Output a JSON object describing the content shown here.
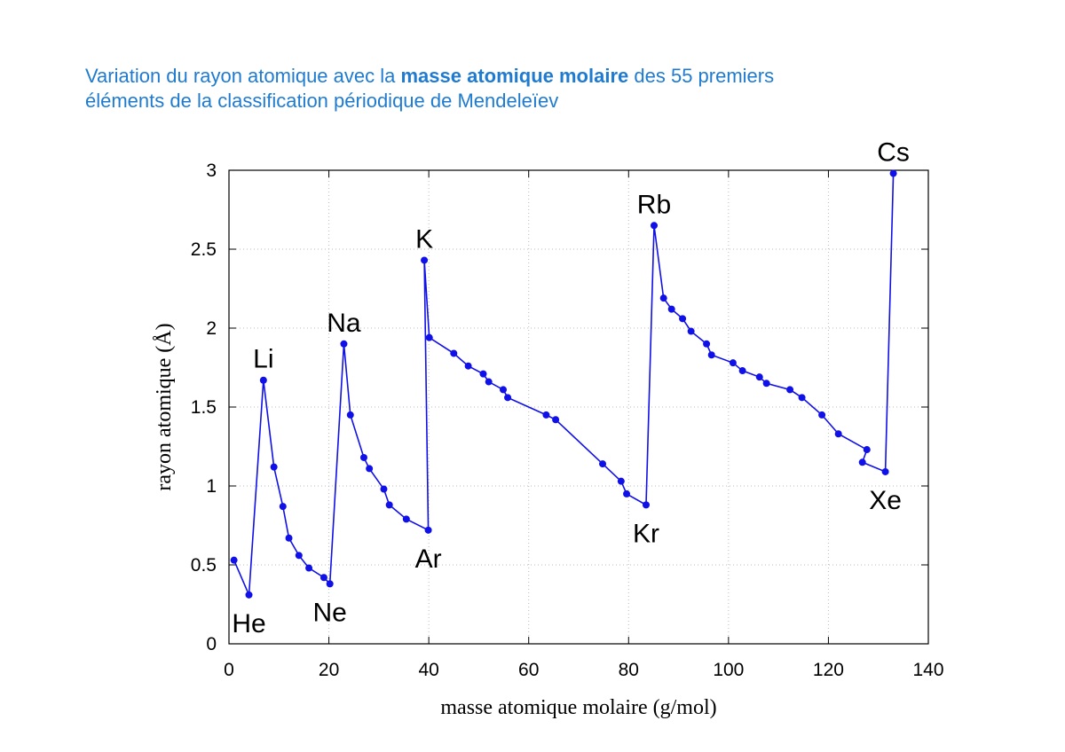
{
  "chart_data": {
    "type": "line",
    "title": [
      "Variation du rayon atomique avec la ",
      "masse atomique molaire",
      " des 55 premiers",
      "éléments de la classification périodique de Mendeleïev"
    ],
    "xlabel": "masse atomique molaire (g/mol)",
    "ylabel": "rayon atomique (Å)",
    "x": [
      1,
      4,
      6.9,
      9,
      10.8,
      12,
      14,
      16,
      19,
      20.2,
      23,
      24.3,
      27,
      28.1,
      31,
      32.1,
      35.5,
      39.9,
      39.1,
      40.1,
      45,
      47.9,
      50.9,
      52,
      54.9,
      55.8,
      63.5,
      65.4,
      74.8,
      78.5,
      79.6,
      83.5,
      85.1,
      87,
      88.6,
      90.8,
      92.5,
      95.6,
      96.6,
      100.9,
      102.8,
      106.2,
      107.6,
      112.3,
      114.7,
      118.7,
      122,
      127.7,
      126.8,
      131.4,
      133
    ],
    "series": [
      {
        "name": "rayon atomique",
        "color": "#1010e8",
        "values": [
          0.53,
          0.31,
          1.67,
          1.12,
          0.87,
          0.67,
          0.56,
          0.48,
          0.42,
          0.38,
          1.9,
          1.45,
          1.18,
          1.11,
          0.98,
          0.88,
          0.79,
          0.72,
          2.43,
          1.94,
          1.84,
          1.76,
          1.71,
          1.66,
          1.61,
          1.56,
          1.45,
          1.42,
          1.14,
          1.03,
          0.95,
          0.88,
          2.65,
          2.19,
          2.12,
          2.06,
          1.98,
          1.9,
          1.83,
          1.78,
          1.73,
          1.69,
          1.65,
          1.61,
          1.56,
          1.45,
          1.33,
          1.23,
          1.15,
          1.09,
          2.98
        ]
      }
    ],
    "point_labels": [
      null,
      "He",
      "Li",
      null,
      null,
      null,
      null,
      null,
      null,
      "Ne",
      "Na",
      null,
      null,
      null,
      null,
      null,
      null,
      "Ar",
      "K",
      null,
      null,
      null,
      null,
      null,
      null,
      null,
      null,
      null,
      null,
      null,
      null,
      "Kr",
      "Rb",
      null,
      null,
      null,
      null,
      null,
      null,
      null,
      null,
      null,
      null,
      null,
      null,
      null,
      null,
      null,
      null,
      "Xe",
      "Cs"
    ],
    "xlim": [
      0,
      140
    ],
    "xticks": [
      0,
      20,
      40,
      60,
      80,
      100,
      120,
      140
    ],
    "ylim": [
      0,
      3
    ],
    "yticks": [
      0,
      0.5,
      1,
      1.5,
      2,
      2.5,
      3
    ],
    "grid": true
  }
}
